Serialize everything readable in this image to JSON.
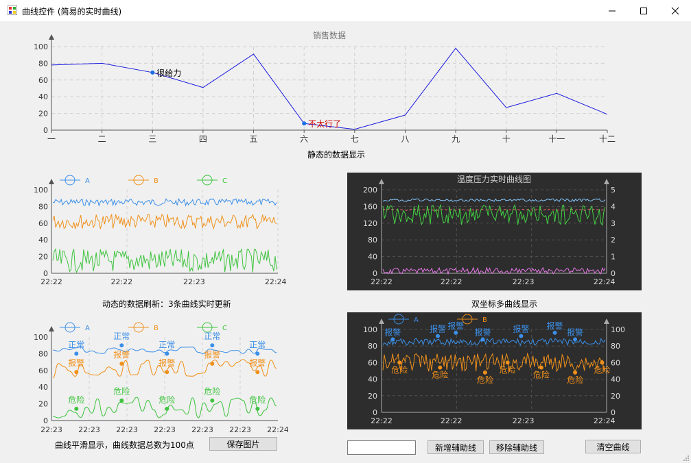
{
  "window": {
    "title": "曲线控件 (简易的实时曲线)"
  },
  "charts": {
    "sales": {
      "title": "销售数据",
      "caption": "静态的数据显示",
      "categories": [
        "一",
        "二",
        "三",
        "四",
        "五",
        "六",
        "七",
        "八",
        "九",
        "十",
        "十一",
        "十二"
      ],
      "values": [
        78,
        80,
        69,
        51,
        91,
        8,
        1,
        18,
        98,
        27,
        44,
        19
      ],
      "y_ticks": [
        "0",
        "20",
        "40",
        "60",
        "80",
        "100"
      ],
      "annotations": [
        {
          "label": "很给力",
          "index": 2,
          "color": "#000000"
        },
        {
          "label": "不太行了",
          "index": 5,
          "color": "#cc0000"
        }
      ]
    },
    "dynamic": {
      "caption": "动态的数据刷新：3条曲线实时更新",
      "legend": [
        "A",
        "B",
        "C"
      ],
      "y_ticks": [
        "0",
        "20",
        "40",
        "60",
        "80",
        "100"
      ],
      "x_ticks": [
        "22:22",
        "22:22",
        "22:23",
        "22:24"
      ]
    },
    "temp": {
      "title": "温度压力实时曲线图",
      "caption": "双坐标多曲线显示",
      "y_left_ticks": [
        "0",
        "40",
        "80",
        "120",
        "160",
        "200"
      ],
      "y_right_ticks": [
        "0",
        "1",
        "2",
        "3",
        "4",
        "5"
      ],
      "x_ticks": [
        "22:22",
        "22:22",
        "22:23",
        "22:24"
      ]
    },
    "smooth": {
      "caption": "曲线平滑显示，曲线数据总数为100点",
      "legend": [
        "A",
        "B",
        "C"
      ],
      "y_ticks": [
        "0",
        "20",
        "40",
        "60",
        "80",
        "100"
      ],
      "x_ticks": [
        "22:23",
        "22:23",
        "22:23",
        "22:23",
        "22:23",
        "22:23",
        "22:24"
      ],
      "marks": {
        "a": [
          {
            "label": "正常",
            "x": 0.11
          },
          {
            "label": "正常",
            "x": 0.31
          },
          {
            "label": "正常",
            "x": 0.51
          },
          {
            "label": "正常",
            "x": 0.71
          },
          {
            "label": "正常",
            "x": 0.91
          }
        ],
        "b": [
          {
            "label": "报警",
            "x": 0.11
          },
          {
            "label": "报警",
            "x": 0.31
          },
          {
            "label": "报警",
            "x": 0.51
          },
          {
            "label": "报警",
            "x": 0.71
          },
          {
            "label": "报警",
            "x": 0.91
          }
        ],
        "c": [
          {
            "label": "危险",
            "x": 0.11
          },
          {
            "label": "危险",
            "x": 0.31
          },
          {
            "label": "危险",
            "x": 0.51
          },
          {
            "label": "危险",
            "x": 0.71
          },
          {
            "label": "危险",
            "x": 0.91
          }
        ]
      }
    },
    "dual": {
      "legend": [
        "A",
        "B"
      ],
      "y_left_ticks": [
        "0",
        "20",
        "40",
        "60",
        "80",
        "100"
      ],
      "y_right_ticks": [
        "0",
        "20",
        "40",
        "60",
        "80",
        "100"
      ],
      "x_ticks": [
        "22:22",
        "22:22",
        "22:23",
        "22:24"
      ],
      "mark_a": "报警",
      "mark_b": "危险"
    }
  },
  "buttons": {
    "save_image": "保存图片",
    "add_aux": "新增辅助线",
    "remove_aux": "移除辅助线",
    "clear": "清空曲线"
  },
  "colors": {
    "a": "#3b8fe8",
    "b": "#f0901a",
    "c": "#3fc43f",
    "dark_bg": "#2d2d2d",
    "sales_line": "#1a1ae0"
  }
}
